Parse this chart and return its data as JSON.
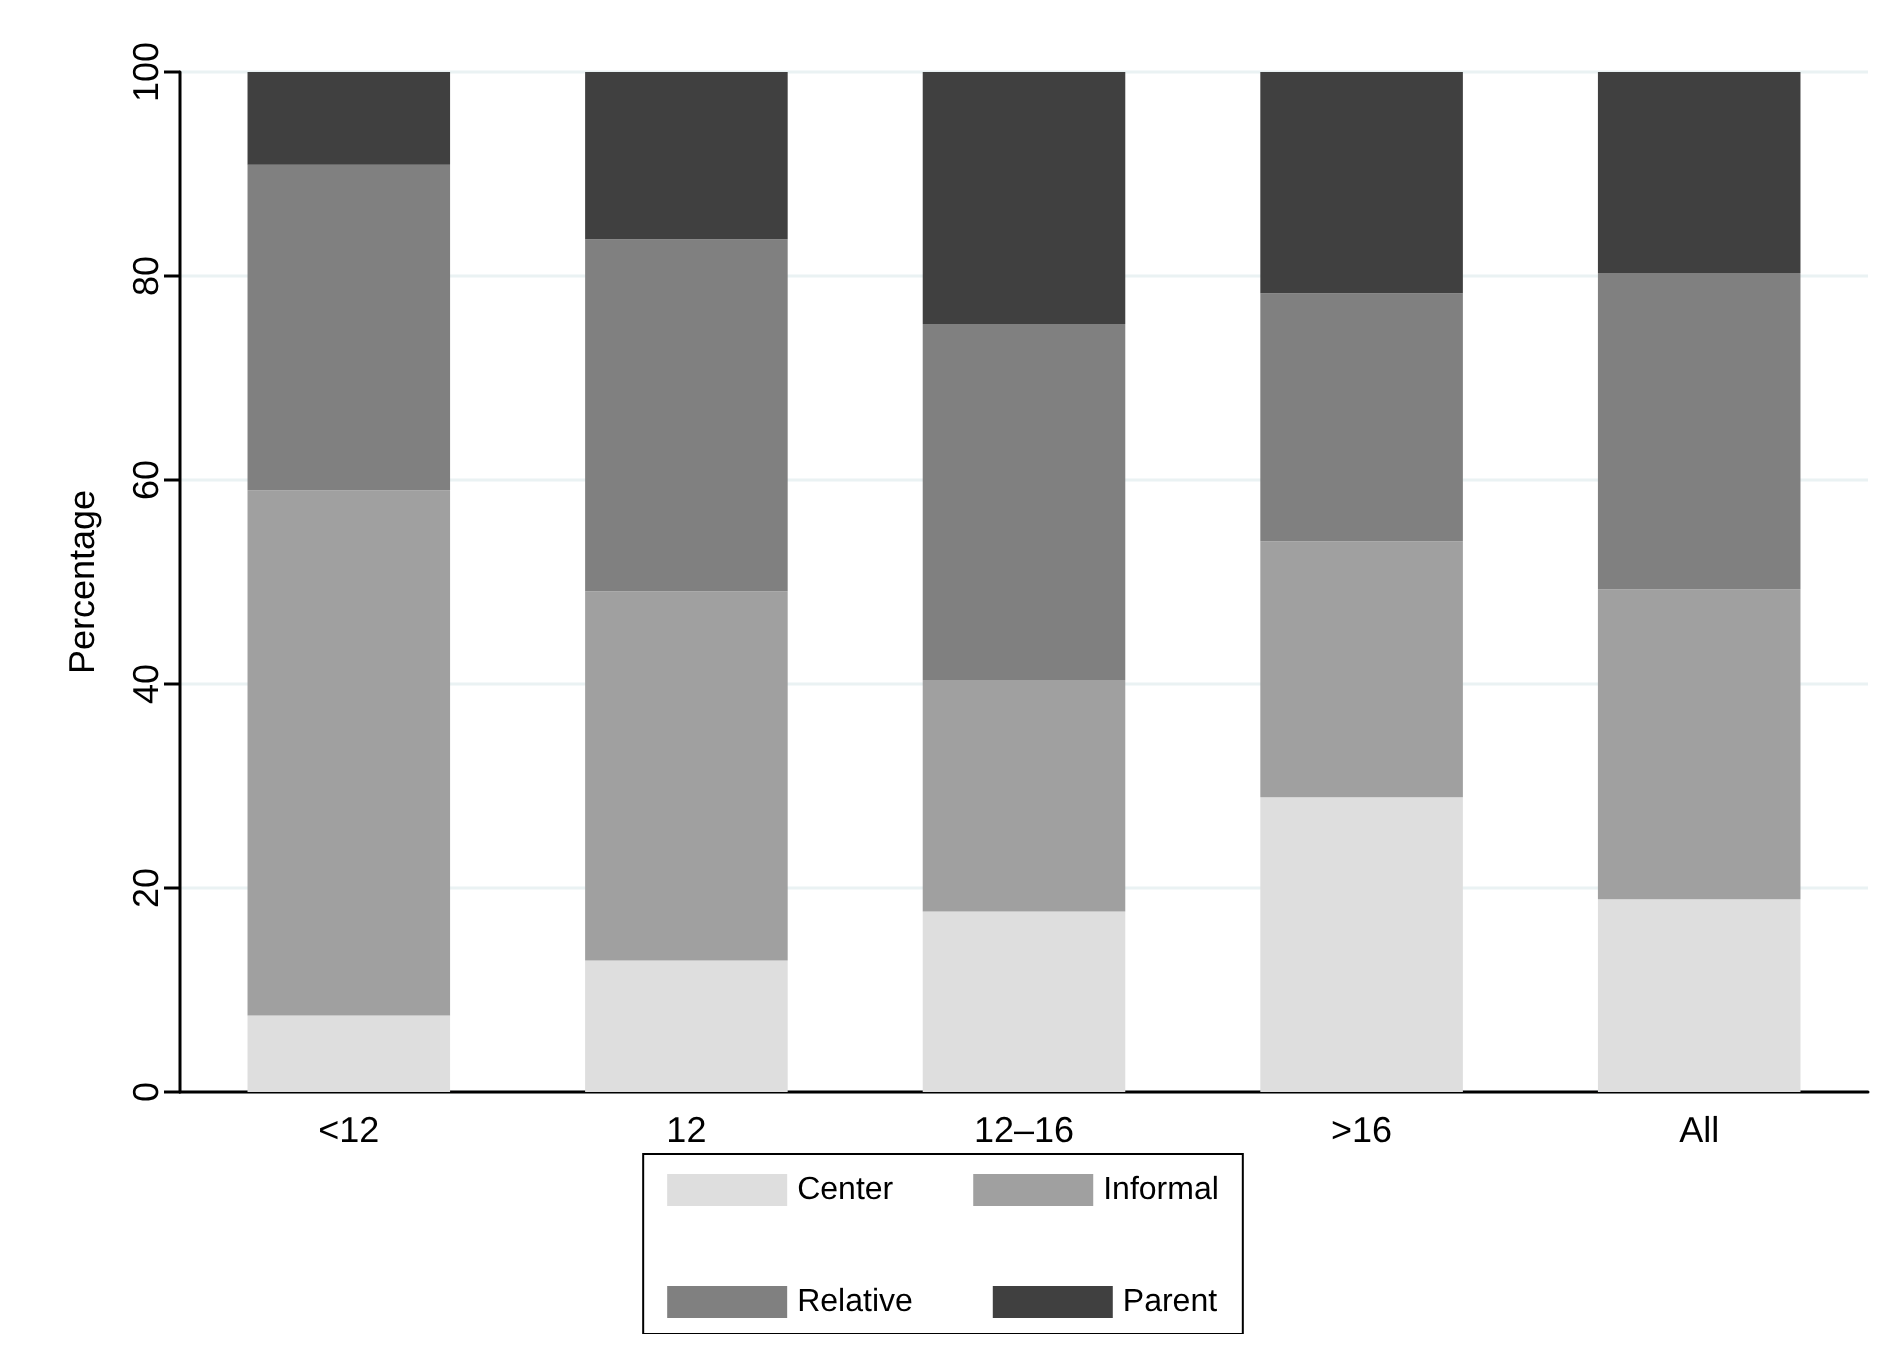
{
  "chart_data": {
    "type": "bar",
    "stacked": true,
    "ylabel": "Percentage",
    "categories": [
      "<12",
      "12",
      "12–16",
      ">16",
      "All"
    ],
    "series": [
      {
        "name": "Center",
        "color": "#dedede",
        "values": [
          7.5,
          12.9,
          17.7,
          28.9,
          18.9
        ]
      },
      {
        "name": "Informal",
        "color": "#a0a0a0",
        "values": [
          51.5,
          36.2,
          22.7,
          25.1,
          30.4
        ]
      },
      {
        "name": "Relative",
        "color": "#808080",
        "values": [
          31.9,
          34.5,
          34.9,
          24.3,
          31.0
        ]
      },
      {
        "name": "Parent",
        "color": "#404040",
        "values": [
          9.1,
          16.4,
          24.7,
          21.7,
          19.7
        ]
      }
    ],
    "ylim": [
      0,
      100
    ],
    "yticks": [
      0,
      20,
      40,
      60,
      80,
      100
    ],
    "grid": "y",
    "legend": "bottom"
  }
}
